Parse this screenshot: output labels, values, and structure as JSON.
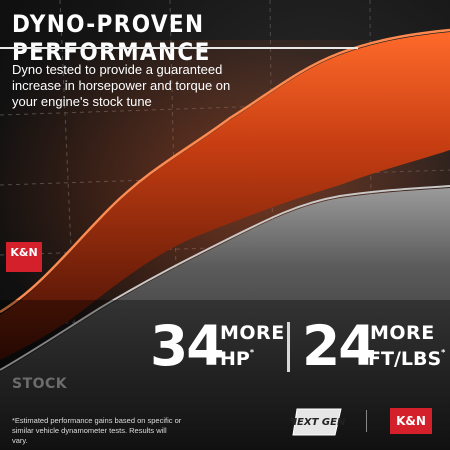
{
  "header": {
    "title": "DYNO-PROVEN PERFORMANCE",
    "subtitle": "Dyno tested to provide a guaranteed increase in horsepower and torque on your engine's stock tune"
  },
  "stats": {
    "hp": {
      "value": "34",
      "more": "MORE",
      "unit": "HP"
    },
    "torque": {
      "value": "24",
      "more": "MORE",
      "unit": "FT/LBS"
    },
    "asterisk": "*"
  },
  "labels": {
    "stock": "STOCK"
  },
  "footer": {
    "disclaimer": "*Estimated performance gains based on specific or similar vehicle dynamometer tests. Results will vary.",
    "nexgen_logo": "NEXT GEN",
    "brand_logo": "K&N"
  },
  "colors": {
    "accent_orange": "#e2541c",
    "brand_red": "#d4202a",
    "stock_gray": "#8a8a8a"
  },
  "icons": {
    "brand": "kn-logo",
    "nexgen": "nexgen-logo"
  }
}
